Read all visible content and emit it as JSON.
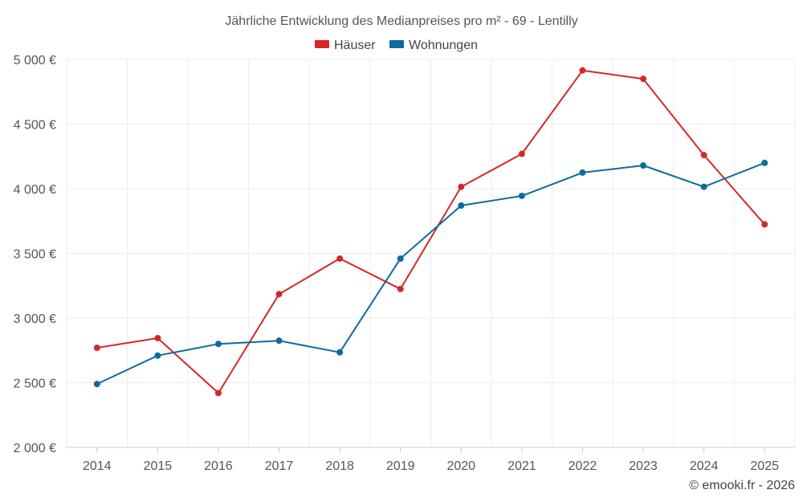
{
  "chart_data": {
    "type": "line",
    "title": "Jährliche Entwicklung des Medianpreises pro m² - 69 - Lentilly",
    "categories": [
      "2014",
      "2015",
      "2016",
      "2017",
      "2018",
      "2019",
      "2020",
      "2021",
      "2022",
      "2023",
      "2024",
      "2025"
    ],
    "series": [
      {
        "name": "Häuser",
        "color": "#d62728",
        "values": [
          2770,
          2845,
          2420,
          3185,
          3460,
          3225,
          4015,
          4270,
          4915,
          4850,
          4260,
          3725
        ]
      },
      {
        "name": "Wohnungen",
        "color": "#0e6aa0",
        "values": [
          2490,
          2710,
          2800,
          2825,
          2735,
          3460,
          3870,
          3945,
          4125,
          4180,
          4015,
          4200
        ]
      }
    ],
    "ylim": [
      2000,
      5000
    ],
    "yticks": [
      2000,
      2500,
      3000,
      3500,
      4000,
      4500,
      5000
    ],
    "ytick_labels": [
      "2 000 €",
      "2 500 €",
      "3 000 €",
      "3 500 €",
      "4 000 €",
      "4 500 €",
      "5 000 €"
    ],
    "xlabel": "",
    "ylabel": "",
    "grid": true,
    "legend_position": "top-center"
  },
  "credit": "© emooki.fr - 2026"
}
